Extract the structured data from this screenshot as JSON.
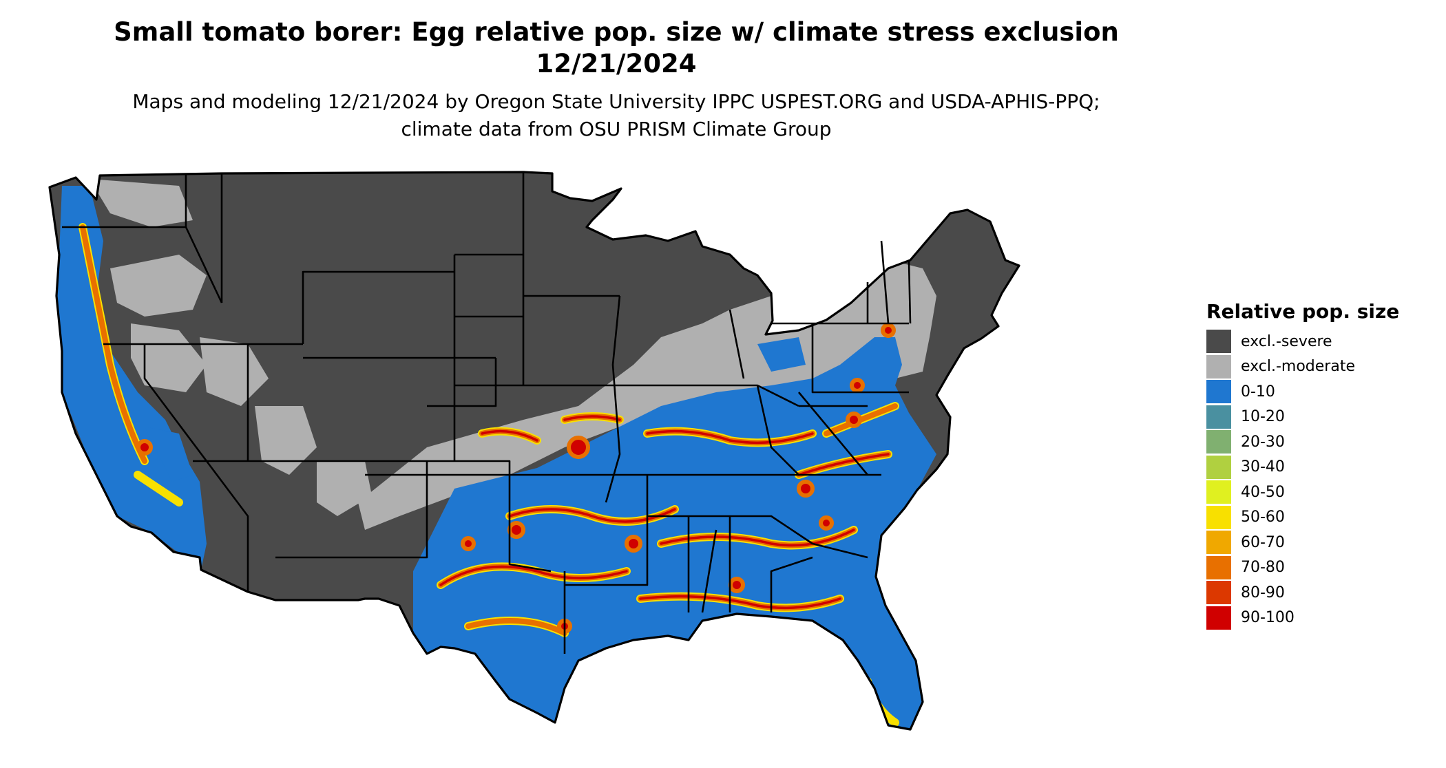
{
  "title": "Small tomato borer: Egg relative pop. size w/ climate stress exclusion 12/21/2024",
  "subtitle": "Maps and modeling 12/21/2024 by Oregon State University IPPC USPEST.ORG and USDA-APHIS-PPQ; climate data from OSU PRISM Climate Group",
  "legend": {
    "title": "Relative pop. size",
    "items": [
      {
        "label": "excl.-severe",
        "color": "#4a4a4a"
      },
      {
        "label": "excl.-moderate",
        "color": "#b0b0b0"
      },
      {
        "label": "0-10",
        "color": "#1f77d0"
      },
      {
        "label": "10-20",
        "color": "#4a90a0"
      },
      {
        "label": "20-30",
        "color": "#80b070"
      },
      {
        "label": "30-40",
        "color": "#b0d040"
      },
      {
        "label": "40-50",
        "color": "#e0f020"
      },
      {
        "label": "50-60",
        "color": "#f8e000"
      },
      {
        "label": "60-70",
        "color": "#f0a800"
      },
      {
        "label": "70-80",
        "color": "#e87000"
      },
      {
        "label": "80-90",
        "color": "#dc3800"
      },
      {
        "label": "90-100",
        "color": "#d00000"
      }
    ]
  },
  "map": {
    "colors": {
      "severe": "#4a4a4a",
      "moderate": "#b0b0b0",
      "low": "#1f77d0",
      "mid": "#f8e000",
      "high": "#e87000",
      "peak": "#d00000",
      "border": "#000000"
    }
  }
}
